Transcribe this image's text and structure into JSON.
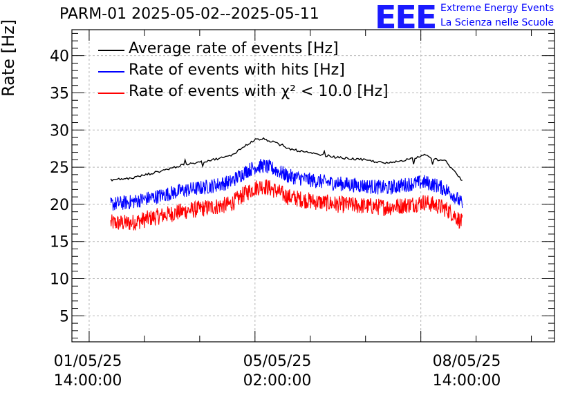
{
  "title": "PARM-01 2025-05-02--2025-05-11",
  "logo": {
    "text": "EEE",
    "line1": "Extreme Energy Events",
    "line2": "La Scienza nelle Scuole",
    "color": "#0000ff"
  },
  "chart_data": {
    "type": "line",
    "ylabel": "Rate [Hz]",
    "xlabel": "",
    "ylim": [
      1.5,
      43.5
    ],
    "yticks": [
      5,
      10,
      15,
      20,
      25,
      30,
      35,
      40
    ],
    "xlim": [
      -0.104,
      2.806
    ],
    "x_unit": "days since 01/05/25 14:00:00",
    "xticks": [
      {
        "value": 0.0,
        "date": "01/05/25",
        "time": "14:00:00"
      },
      {
        "value": 1.0,
        "date": "05/05/25",
        "time": "02:00:00"
      },
      {
        "value": 2.0,
        "date": "08/05/25",
        "time": "14:00:00"
      }
    ],
    "grid": true,
    "legend_position": "top-left",
    "series": [
      {
        "name": "Average rate of events [Hz]",
        "color": "#000000",
        "x": [
          0.13,
          0.25,
          0.4,
          0.55,
          0.7,
          0.85,
          0.95,
          1.0,
          1.05,
          1.12,
          1.2,
          1.35,
          1.5,
          1.65,
          1.8,
          1.95,
          2.02,
          2.1,
          2.15,
          2.2,
          2.25
        ],
        "y": [
          23.3,
          23.5,
          24.3,
          25.2,
          25.8,
          26.5,
          28.0,
          28.7,
          28.8,
          28.3,
          27.5,
          26.8,
          26.3,
          26.0,
          25.5,
          26.2,
          26.6,
          26.0,
          25.8,
          24.5,
          23.1
        ]
      },
      {
        "name": "Rate of events with hits [Hz]",
        "color": "#0000ff",
        "x": [
          0.13,
          0.25,
          0.4,
          0.55,
          0.7,
          0.85,
          0.95,
          1.0,
          1.05,
          1.12,
          1.2,
          1.35,
          1.5,
          1.65,
          1.8,
          1.95,
          2.02,
          2.1,
          2.15,
          2.2,
          2.25
        ],
        "y": [
          20.0,
          20.3,
          21.0,
          21.8,
          22.3,
          23.0,
          24.5,
          25.0,
          25.2,
          24.7,
          23.8,
          23.2,
          22.8,
          22.5,
          22.2,
          22.8,
          23.0,
          22.5,
          22.0,
          21.2,
          20.0
        ]
      },
      {
        "name": "Rate of events with χ² < 10.0 [Hz]",
        "color": "#ff0000",
        "x": [
          0.13,
          0.25,
          0.4,
          0.55,
          0.7,
          0.85,
          0.95,
          1.0,
          1.05,
          1.12,
          1.2,
          1.35,
          1.5,
          1.65,
          1.8,
          1.95,
          2.02,
          2.1,
          2.15,
          2.2,
          2.25
        ],
        "y": [
          17.5,
          17.5,
          18.3,
          19.0,
          19.5,
          20.0,
          21.6,
          22.2,
          22.5,
          21.9,
          21.0,
          20.4,
          20.0,
          19.8,
          19.6,
          20.0,
          20.3,
          19.8,
          19.4,
          18.6,
          17.5
        ]
      }
    ]
  }
}
